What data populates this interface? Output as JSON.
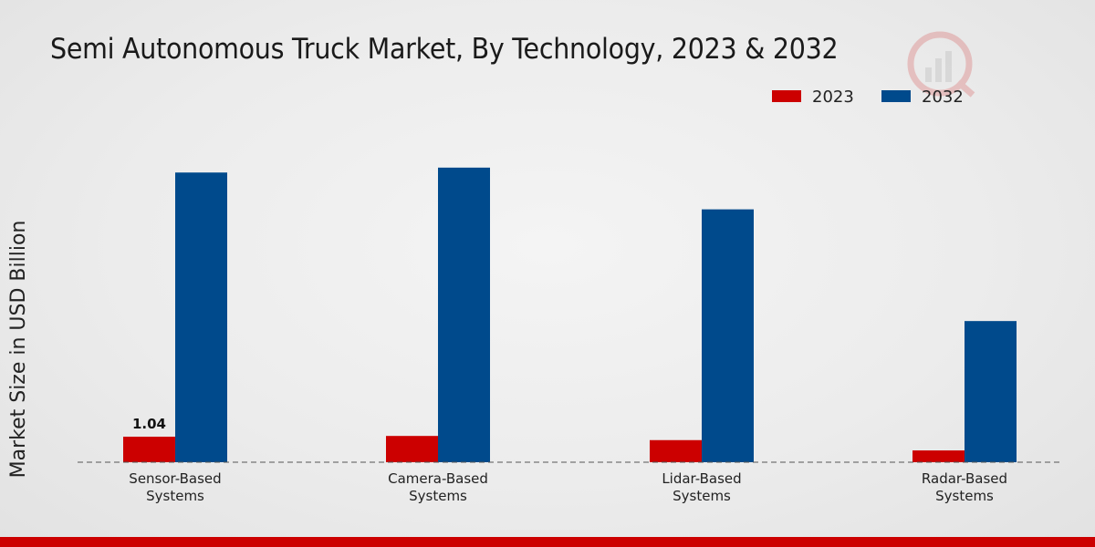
{
  "chart_data": {
    "type": "bar",
    "title": "Semi Autonomous Truck Market, By Technology, 2023 & 2032",
    "xlabel": "",
    "ylabel": "Market Size in USD Billion",
    "categories": [
      "Sensor-Based Systems",
      "Camera-Based Systems",
      "Lidar-Based Systems",
      "Radar-Based Systems"
    ],
    "category_lines": [
      [
        "Sensor-Based",
        "Systems"
      ],
      [
        "Camera-Based",
        "Systems"
      ],
      [
        "Lidar-Based",
        "Systems"
      ],
      [
        "Radar-Based",
        "Systems"
      ]
    ],
    "series": [
      {
        "name": "2023",
        "color": "#cc0000",
        "values": [
          1.04,
          1.07,
          0.9,
          0.48
        ]
      },
      {
        "name": "2032",
        "color": "#004a8c",
        "values": [
          11.8,
          12.0,
          10.3,
          5.75
        ]
      }
    ],
    "data_labels": [
      {
        "series": 0,
        "index": 0,
        "text": "1.04"
      }
    ],
    "ylim": [
      0,
      14
    ],
    "grid": false,
    "legend_position": "top-right"
  },
  "colors": {
    "accent_bar": "#cc0000"
  }
}
